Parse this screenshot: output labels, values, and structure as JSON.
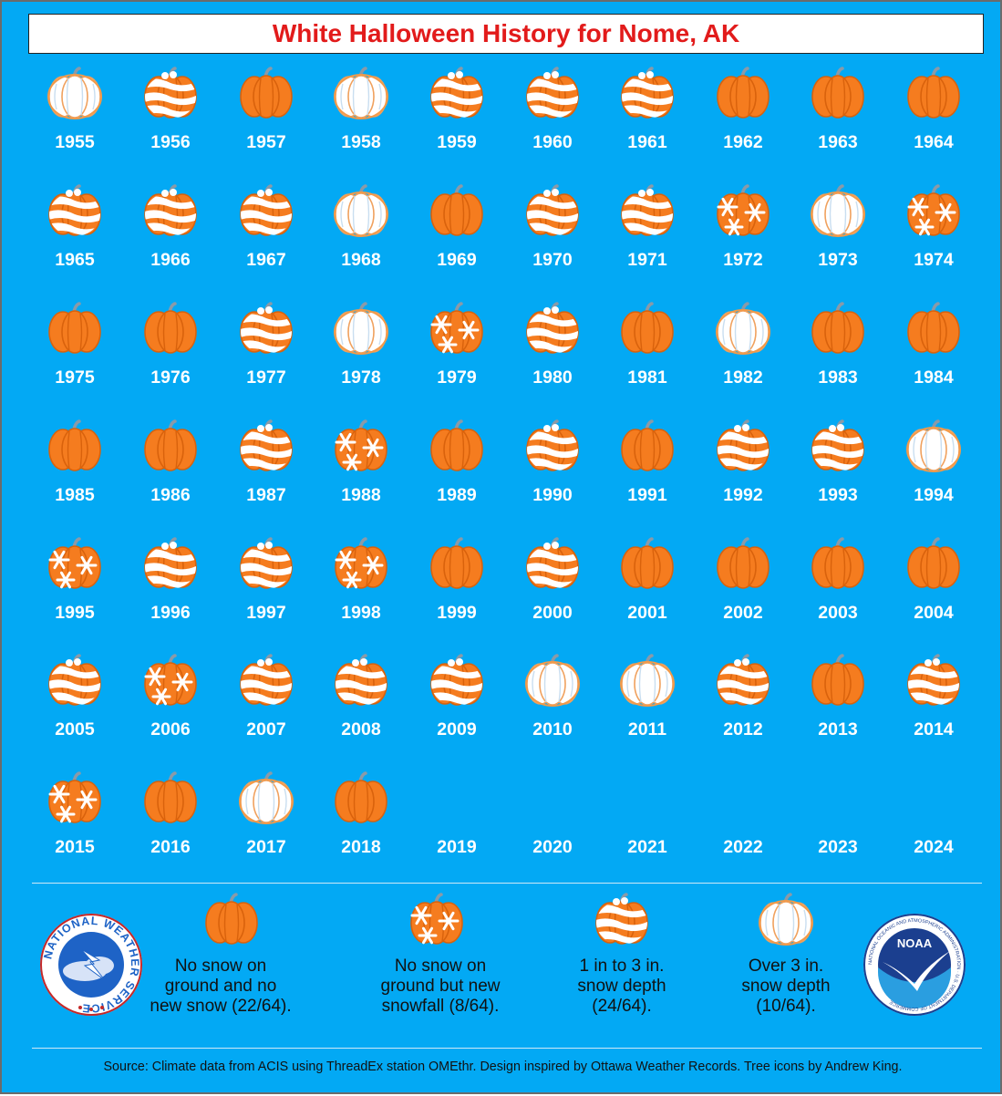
{
  "title": "White Halloween History for Nome, AK",
  "colors": {
    "background": "#03a9f4",
    "pumpkin": "#f57c1f",
    "pumpkin_dark": "#d9620c",
    "snow": "#ffffff",
    "title_text": "#e21b1b"
  },
  "chart_data": {
    "type": "table",
    "title": "White Halloween History for Nome, AK",
    "categories": [
      {
        "key": "none",
        "label": "No snow on ground and no new snow (22/64).",
        "count": 22,
        "icon": "orange-pumpkin-icon"
      },
      {
        "key": "snowfall",
        "label": "No snow on ground but new snowfall (8/64).",
        "count": 8,
        "icon": "snowflake-pumpkin-icon"
      },
      {
        "key": "depth1to3",
        "label": "1 in to 3 in. snow depth (24/64).",
        "count": 24,
        "icon": "snow-striped-pumpkin-icon"
      },
      {
        "key": "over3",
        "label": "Over 3 in. snow depth (10/64).",
        "count": 10,
        "icon": "white-pumpkin-icon"
      }
    ],
    "years": [
      {
        "year": "1955",
        "category": "over3"
      },
      {
        "year": "1956",
        "category": "depth1to3"
      },
      {
        "year": "1957",
        "category": "none"
      },
      {
        "year": "1958",
        "category": "over3"
      },
      {
        "year": "1959",
        "category": "depth1to3"
      },
      {
        "year": "1960",
        "category": "depth1to3"
      },
      {
        "year": "1961",
        "category": "depth1to3"
      },
      {
        "year": "1962",
        "category": "none"
      },
      {
        "year": "1963",
        "category": "none"
      },
      {
        "year": "1964",
        "category": "none"
      },
      {
        "year": "1965",
        "category": "depth1to3"
      },
      {
        "year": "1966",
        "category": "depth1to3"
      },
      {
        "year": "1967",
        "category": "depth1to3"
      },
      {
        "year": "1968",
        "category": "over3"
      },
      {
        "year": "1969",
        "category": "none"
      },
      {
        "year": "1970",
        "category": "depth1to3"
      },
      {
        "year": "1971",
        "category": "depth1to3"
      },
      {
        "year": "1972",
        "category": "snowfall"
      },
      {
        "year": "1973",
        "category": "over3"
      },
      {
        "year": "1974",
        "category": "snowfall"
      },
      {
        "year": "1975",
        "category": "none"
      },
      {
        "year": "1976",
        "category": "none"
      },
      {
        "year": "1977",
        "category": "depth1to3"
      },
      {
        "year": "1978",
        "category": "over3"
      },
      {
        "year": "1979",
        "category": "snowfall"
      },
      {
        "year": "1980",
        "category": "depth1to3"
      },
      {
        "year": "1981",
        "category": "none"
      },
      {
        "year": "1982",
        "category": "over3"
      },
      {
        "year": "1983",
        "category": "none"
      },
      {
        "year": "1984",
        "category": "none"
      },
      {
        "year": "1985",
        "category": "none"
      },
      {
        "year": "1986",
        "category": "none"
      },
      {
        "year": "1987",
        "category": "depth1to3"
      },
      {
        "year": "1988",
        "category": "snowfall"
      },
      {
        "year": "1989",
        "category": "none"
      },
      {
        "year": "1990",
        "category": "depth1to3"
      },
      {
        "year": "1991",
        "category": "none"
      },
      {
        "year": "1992",
        "category": "depth1to3"
      },
      {
        "year": "1993",
        "category": "depth1to3"
      },
      {
        "year": "1994",
        "category": "over3"
      },
      {
        "year": "1995",
        "category": "snowfall"
      },
      {
        "year": "1996",
        "category": "depth1to3"
      },
      {
        "year": "1997",
        "category": "depth1to3"
      },
      {
        "year": "1998",
        "category": "snowfall"
      },
      {
        "year": "1999",
        "category": "none"
      },
      {
        "year": "2000",
        "category": "depth1to3"
      },
      {
        "year": "2001",
        "category": "none"
      },
      {
        "year": "2002",
        "category": "none"
      },
      {
        "year": "2003",
        "category": "none"
      },
      {
        "year": "2004",
        "category": "none"
      },
      {
        "year": "2005",
        "category": "depth1to3"
      },
      {
        "year": "2006",
        "category": "snowfall"
      },
      {
        "year": "2007",
        "category": "depth1to3"
      },
      {
        "year": "2008",
        "category": "depth1to3"
      },
      {
        "year": "2009",
        "category": "depth1to3"
      },
      {
        "year": "2010",
        "category": "over3"
      },
      {
        "year": "2011",
        "category": "over3"
      },
      {
        "year": "2012",
        "category": "depth1to3"
      },
      {
        "year": "2013",
        "category": "none"
      },
      {
        "year": "2014",
        "category": "depth1to3"
      },
      {
        "year": "2015",
        "category": "snowfall"
      },
      {
        "year": "2016",
        "category": "none"
      },
      {
        "year": "2017",
        "category": "over3"
      },
      {
        "year": "2018",
        "category": "none"
      },
      {
        "year": "2019",
        "category": null
      },
      {
        "year": "2020",
        "category": null
      },
      {
        "year": "2021",
        "category": null
      },
      {
        "year": "2022",
        "category": null
      },
      {
        "year": "2023",
        "category": null
      },
      {
        "year": "2024",
        "category": null
      }
    ]
  },
  "legend": [
    {
      "text": "No snow on\nground and no\nnew snow (22/64).",
      "icon": "orange-pumpkin-icon"
    },
    {
      "text": "No snow on\nground but new\nsnowfall (8/64).",
      "icon": "snowflake-pumpkin-icon"
    },
    {
      "text": "1 in to 3 in.\nsnow depth\n(24/64).",
      "icon": "snow-striped-pumpkin-icon"
    },
    {
      "text": "Over 3 in.\nsnow depth\n(10/64).",
      "icon": "white-pumpkin-icon"
    }
  ],
  "logos": {
    "nws_text": "NATIONAL WEATHER SERVICE",
    "noaa_text": "NOAA",
    "noaa_ring_text": "NATIONAL OCEANIC AND ATMOSPHERIC ADMINISTRATION · U.S. DEPARTMENT OF COMMERCE"
  },
  "source": "Source: Climate data from ACIS using ThreadEx station OMEthr. Design inspired by Ottawa Weather Records. Tree icons by Andrew King."
}
